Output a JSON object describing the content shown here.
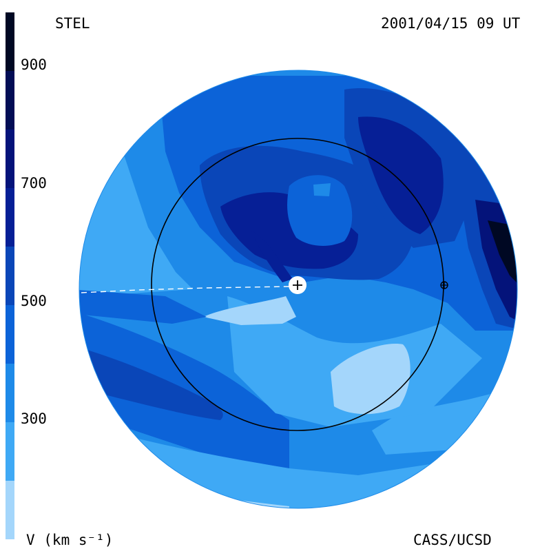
{
  "header": {
    "left_label": "STEL",
    "right_label": "2001/04/15 09 UT"
  },
  "footer": {
    "unit_label": "V (km s⁻¹)",
    "credit": "CASS/UCSD"
  },
  "colorbar": {
    "ticks": [
      "900",
      "700",
      "500",
      "300"
    ],
    "levels_km_s": [
      200,
      300,
      400,
      500,
      600,
      700,
      800,
      900,
      1000
    ],
    "colors": [
      "#a4d6fb",
      "#3fa9f5",
      "#1e8ae8",
      "#0c63d8",
      "#0a46b8",
      "#061f96",
      "#04137a",
      "#020d55",
      "#000823"
    ]
  },
  "colors": {
    "bg": "#ffffff",
    "v300": "#3fa9f5",
    "v400": "#1e8ae8",
    "v500": "#0c63d8",
    "v600": "#0a46b8",
    "v700": "#061f96",
    "v800": "#04137a",
    "v900": "#000823",
    "vlow": "#a4d6fb",
    "orbit": "#000000"
  }
}
